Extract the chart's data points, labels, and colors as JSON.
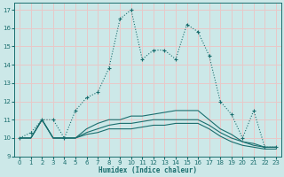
{
  "xlabel": "Humidex (Indice chaleur)",
  "xlim": [
    -0.5,
    23.5
  ],
  "ylim": [
    9,
    17.4
  ],
  "yticks": [
    9,
    10,
    11,
    12,
    13,
    14,
    15,
    16,
    17
  ],
  "xticks": [
    0,
    1,
    2,
    3,
    4,
    5,
    6,
    7,
    8,
    9,
    10,
    11,
    12,
    13,
    14,
    15,
    16,
    17,
    18,
    19,
    20,
    21,
    22,
    23
  ],
  "background_color": "#cce8e8",
  "grid_color": "#e8c8c8",
  "line_color": "#1a6e6e",
  "line1_x": [
    0,
    1,
    2,
    3,
    4,
    5,
    6,
    7,
    8,
    9,
    10,
    11,
    12,
    13,
    14,
    15,
    16,
    17,
    18,
    19,
    20,
    21,
    22,
    23
  ],
  "line1_y": [
    10.0,
    10.3,
    11.0,
    11.0,
    10.0,
    11.5,
    12.2,
    12.5,
    13.8,
    16.5,
    17.0,
    14.3,
    14.8,
    14.8,
    14.3,
    16.2,
    15.8,
    14.5,
    12.0,
    11.3,
    10.0,
    11.5,
    9.5,
    9.5
  ],
  "line2_x": [
    0,
    1,
    2,
    3,
    4,
    5,
    6,
    7,
    8,
    9,
    10,
    11,
    12,
    13,
    14,
    15,
    16,
    17,
    18,
    19,
    20,
    21,
    22,
    23
  ],
  "line2_y": [
    10.0,
    10.0,
    11.0,
    10.0,
    10.0,
    10.0,
    10.5,
    10.8,
    11.0,
    11.0,
    11.2,
    11.2,
    11.3,
    11.4,
    11.5,
    11.5,
    11.5,
    11.0,
    10.5,
    10.2,
    9.8,
    9.7,
    9.5,
    9.5
  ],
  "line3_x": [
    0,
    1,
    2,
    3,
    4,
    5,
    6,
    7,
    8,
    9,
    10,
    11,
    12,
    13,
    14,
    15,
    16,
    17,
    18,
    19,
    20,
    21,
    22,
    23
  ],
  "line3_y": [
    10.0,
    10.0,
    11.0,
    10.0,
    10.0,
    10.0,
    10.3,
    10.5,
    10.7,
    10.8,
    10.8,
    10.9,
    11.0,
    11.0,
    11.0,
    11.0,
    11.0,
    10.7,
    10.3,
    10.0,
    9.8,
    9.6,
    9.5,
    9.5
  ],
  "line4_x": [
    0,
    1,
    2,
    3,
    4,
    5,
    6,
    7,
    8,
    9,
    10,
    11,
    12,
    13,
    14,
    15,
    16,
    17,
    18,
    19,
    20,
    21,
    22,
    23
  ],
  "line4_y": [
    10.0,
    10.0,
    11.0,
    10.0,
    10.0,
    10.0,
    10.2,
    10.3,
    10.5,
    10.5,
    10.5,
    10.6,
    10.7,
    10.7,
    10.8,
    10.8,
    10.8,
    10.5,
    10.1,
    9.8,
    9.6,
    9.5,
    9.4,
    9.4
  ]
}
